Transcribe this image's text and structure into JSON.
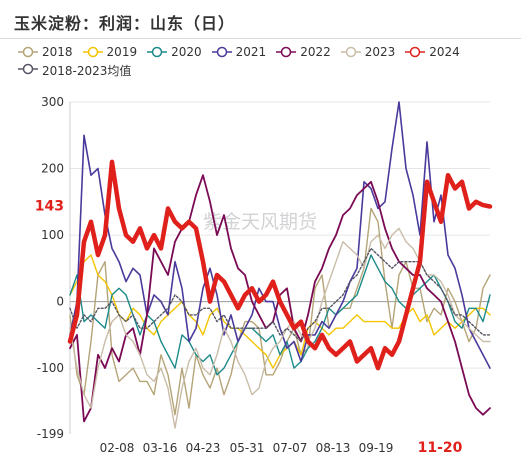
{
  "chart_data": {
    "type": "line",
    "title": "玉米淀粉：利润：山东（日）",
    "watermark": "紫金天风期货",
    "ylim": [
      -199,
      300
    ],
    "yticks": [
      "300",
      "200",
      "100",
      "0",
      "-100",
      "-199"
    ],
    "latest_value_label": "143",
    "xticks": [
      "02-08",
      "03-16",
      "04-23",
      "05-31",
      "07-07",
      "08-13",
      "09-19",
      "11-20"
    ],
    "highlight_xtick": "11-20",
    "grid": true,
    "legend_position": "top",
    "series": [
      {
        "name": "2018",
        "color": "#b5a477",
        "width": 1.4,
        "dash": "",
        "values": [
          -20,
          -110,
          -140,
          -60,
          40,
          60,
          -80,
          -120,
          -110,
          -100,
          -120,
          -120,
          -140,
          -80,
          -110,
          -170,
          -100,
          -160,
          -80,
          -110,
          -130,
          -100,
          -140,
          -110,
          -60,
          -30,
          -30,
          -40,
          -110,
          -110,
          -90,
          -60,
          -40,
          -80,
          -70,
          20,
          40,
          -40,
          -20,
          -10,
          -10,
          20,
          50,
          140,
          120,
          30,
          -40,
          40,
          60,
          20,
          20,
          -30,
          -10,
          -20,
          20,
          0,
          -30,
          -60,
          -40,
          20,
          40
        ]
      },
      {
        "name": "2019",
        "color": "#f4c400",
        "width": 1.4,
        "dash": "",
        "values": [
          10,
          30,
          60,
          70,
          40,
          30,
          10,
          -20,
          -30,
          -10,
          -20,
          -40,
          -50,
          -30,
          -20,
          -10,
          0,
          -20,
          -30,
          -50,
          -20,
          -10,
          -30,
          -40,
          -40,
          -50,
          -60,
          -70,
          -80,
          -100,
          -80,
          -70,
          -60,
          -80,
          -40,
          -30,
          -40,
          -50,
          -40,
          -40,
          -30,
          -20,
          -30,
          -30,
          -30,
          -30,
          -40,
          -40,
          -20,
          -10,
          -30,
          -20,
          -50,
          -40,
          -30,
          -40,
          -30,
          -20,
          -10,
          -10,
          -20
        ]
      },
      {
        "name": "2020",
        "color": "#1d8a8a",
        "width": 1.4,
        "dash": "",
        "values": [
          10,
          40,
          -30,
          -20,
          -30,
          -40,
          10,
          20,
          10,
          -20,
          -50,
          -20,
          -30,
          -60,
          -80,
          -100,
          -50,
          -60,
          -80,
          -90,
          -80,
          -110,
          -100,
          -80,
          -60,
          -40,
          -40,
          -50,
          -60,
          -50,
          -80,
          -60,
          -100,
          -90,
          -70,
          -60,
          -40,
          -10,
          -20,
          -10,
          0,
          10,
          40,
          70,
          50,
          30,
          20,
          0,
          -10,
          10,
          20,
          30,
          40,
          20,
          0,
          -30,
          -40,
          -10,
          -10,
          -30,
          10
        ]
      },
      {
        "name": "2021",
        "color": "#4a3a9c",
        "width": 1.6,
        "dash": "",
        "values": [
          -50,
          0,
          250,
          190,
          200,
          130,
          80,
          60,
          30,
          50,
          40,
          -20,
          10,
          0,
          -20,
          60,
          20,
          -60,
          -40,
          20,
          50,
          10,
          -50,
          -20,
          -60,
          -40,
          -20,
          20,
          0,
          0,
          -40,
          -70,
          -60,
          -90,
          -50,
          -50,
          -30,
          -40,
          -20,
          0,
          30,
          50,
          180,
          170,
          140,
          150,
          230,
          300,
          200,
          160,
          100,
          240,
          120,
          160,
          70,
          50,
          10,
          -40,
          -60,
          -80,
          -100
        ]
      },
      {
        "name": "2022",
        "color": "#7b0a55",
        "width": 1.8,
        "dash": "",
        "values": [
          -70,
          -50,
          -180,
          -160,
          -80,
          -100,
          -70,
          -90,
          -50,
          -40,
          -80,
          -20,
          80,
          60,
          40,
          90,
          110,
          120,
          160,
          190,
          150,
          100,
          130,
          80,
          50,
          40,
          0,
          -20,
          -40,
          -30,
          10,
          20,
          -40,
          -60,
          -20,
          30,
          50,
          80,
          100,
          130,
          140,
          160,
          170,
          180,
          150,
          110,
          80,
          60,
          50,
          40,
          40,
          20,
          10,
          0,
          -30,
          -60,
          -100,
          -140,
          -160,
          -170,
          -160
        ]
      },
      {
        "name": "2023",
        "color": "#c9bca8",
        "width": 1.4,
        "dash": "",
        "values": [
          -40,
          -100,
          -140,
          -160,
          -100,
          -60,
          -30,
          -20,
          -50,
          -60,
          -80,
          -110,
          -120,
          -100,
          -130,
          -190,
          -130,
          -90,
          -70,
          -100,
          -110,
          -80,
          -40,
          -60,
          -90,
          -110,
          -140,
          -130,
          -90,
          -70,
          -60,
          -40,
          -30,
          -50,
          -60,
          -40,
          0,
          30,
          60,
          90,
          80,
          70,
          50,
          90,
          100,
          80,
          100,
          110,
          90,
          80,
          60,
          40,
          40,
          30,
          10,
          -20,
          -30,
          -40,
          -50,
          -60,
          -60
        ]
      },
      {
        "name": "2024",
        "color": "#e0201b",
        "width": 4.5,
        "dash": "",
        "values": [
          -60,
          -20,
          90,
          120,
          70,
          100,
          210,
          140,
          100,
          90,
          110,
          80,
          100,
          80,
          140,
          120,
          110,
          120,
          110,
          60,
          0,
          40,
          30,
          10,
          -10,
          10,
          20,
          0,
          10,
          30,
          0,
          -20,
          -40,
          -30,
          -60,
          -70,
          -50,
          -70,
          -80,
          -70,
          -60,
          -90,
          -80,
          -70,
          -100,
          -70,
          -80,
          -60,
          -20,
          20,
          60,
          180,
          150,
          120,
          190,
          170,
          180,
          140,
          150,
          145,
          143
        ]
      },
      {
        "name": "2018-2023均值",
        "color": "#555566",
        "width": 1.4,
        "dash": "2,2",
        "values": [
          -10,
          -40,
          -20,
          -30,
          -10,
          -10,
          0,
          -20,
          -30,
          -20,
          -40,
          -40,
          -30,
          -20,
          -10,
          10,
          0,
          -20,
          -20,
          -10,
          -10,
          -30,
          -20,
          -40,
          -40,
          -40,
          -40,
          -40,
          -40,
          -30,
          -50,
          -40,
          -50,
          -60,
          -40,
          -30,
          -10,
          -10,
          0,
          10,
          30,
          40,
          60,
          80,
          70,
          60,
          50,
          60,
          60,
          60,
          60,
          40,
          30,
          20,
          0,
          -20,
          -20,
          -30,
          -40,
          -50,
          -50
        ]
      }
    ]
  }
}
